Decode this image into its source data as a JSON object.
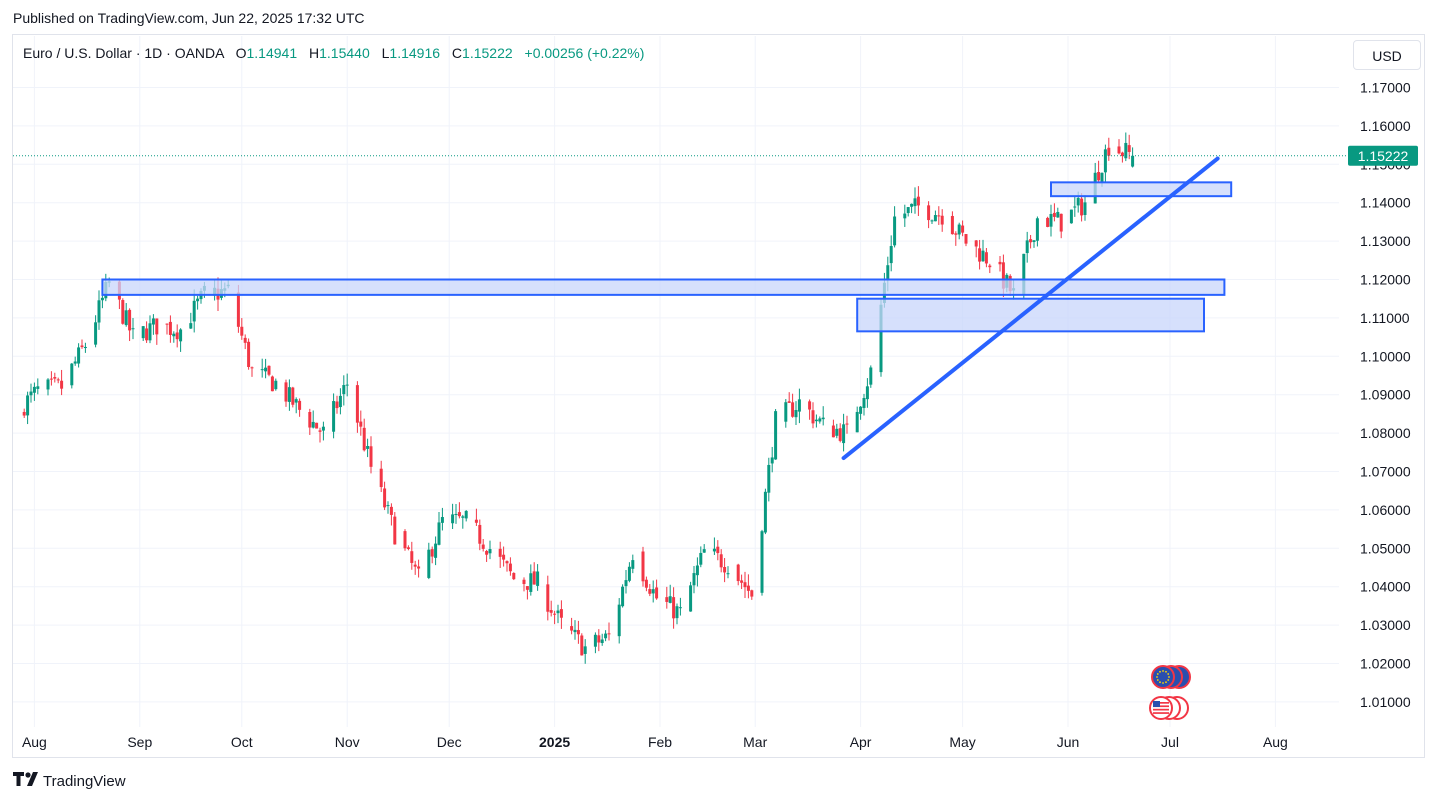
{
  "header": {
    "published": "Published on TradingView.com, Jun 22, 2025 17:32 UTC"
  },
  "legend": {
    "symbol": "Euro / U.S. Dollar · 1D · OANDA",
    "open_label": "O",
    "open": "1.14941",
    "high_label": "H",
    "high": "1.15440",
    "low_label": "L",
    "low": "1.14916",
    "close_label": "C",
    "close": "1.15222",
    "change": "+0.00256 (+0.22%)"
  },
  "currency": "USD",
  "footer": {
    "brand": "TradingView"
  },
  "colors": {
    "up": "#089981",
    "down": "#f23645",
    "drawing": "#2962ff",
    "zone_fill": "#c8d5fb",
    "price_tag": "#089981"
  },
  "icons": [
    "tradingview-logo-icon",
    "eu-flag-icon",
    "us-flag-icon"
  ],
  "chart_data": {
    "type": "candlestick",
    "symbol": "EURUSD",
    "timeframe": "1D",
    "y_ticks": [
      "1.17000",
      "1.16000",
      "1.15000",
      "1.14000",
      "1.13000",
      "1.12000",
      "1.11000",
      "1.10000",
      "1.09000",
      "1.08000",
      "1.07000",
      "1.06000",
      "1.05000",
      "1.04000",
      "1.03000",
      "1.02000",
      "1.01000"
    ],
    "y_tick_values": [
      1.17,
      1.16,
      1.15,
      1.14,
      1.13,
      1.12,
      1.11,
      1.1,
      1.09,
      1.08,
      1.07,
      1.06,
      1.05,
      1.04,
      1.03,
      1.02,
      1.01
    ],
    "x_ticks": [
      {
        "label": "Aug",
        "date": "2024-08-01"
      },
      {
        "label": "Sep",
        "date": "2024-09-01"
      },
      {
        "label": "Oct",
        "date": "2024-10-01"
      },
      {
        "label": "Nov",
        "date": "2024-11-01"
      },
      {
        "label": "Dec",
        "date": "2024-12-01"
      },
      {
        "label": "2025",
        "date": "2025-01-01",
        "bold": true
      },
      {
        "label": "Feb",
        "date": "2025-02-01"
      },
      {
        "label": "Mar",
        "date": "2025-03-01"
      },
      {
        "label": "Apr",
        "date": "2025-04-01"
      },
      {
        "label": "May",
        "date": "2025-05-01"
      },
      {
        "label": "Jun",
        "date": "2025-06-01"
      },
      {
        "label": "Jul",
        "date": "2025-07-01"
      },
      {
        "label": "Aug",
        "date": "2025-08-01"
      }
    ],
    "last_price": "1.15222",
    "last_price_value": 1.15222,
    "key_points": [
      {
        "date": "2024-07-26",
        "close": 1.085
      },
      {
        "date": "2024-08-02",
        "close": 1.091
      },
      {
        "date": "2024-08-09",
        "close": 1.092
      },
      {
        "date": "2024-08-16",
        "close": 1.103
      },
      {
        "date": "2024-08-23",
        "close": 1.119
      },
      {
        "date": "2024-08-30",
        "close": 1.105
      },
      {
        "date": "2024-09-06",
        "close": 1.108
      },
      {
        "date": "2024-09-13",
        "close": 1.107
      },
      {
        "date": "2024-09-20",
        "close": 1.116
      },
      {
        "date": "2024-09-27",
        "close": 1.117
      },
      {
        "date": "2024-10-04",
        "close": 1.096
      },
      {
        "date": "2024-10-11",
        "close": 1.093
      },
      {
        "date": "2024-10-18",
        "close": 1.086
      },
      {
        "date": "2024-10-25",
        "close": 1.08
      },
      {
        "date": "2024-11-01",
        "close": 1.093
      },
      {
        "date": "2024-11-08",
        "close": 1.071
      },
      {
        "date": "2024-11-15",
        "close": 1.054
      },
      {
        "date": "2024-11-22",
        "close": 1.042
      },
      {
        "date": "2024-11-29",
        "close": 1.057
      },
      {
        "date": "2024-12-06",
        "close": 1.057
      },
      {
        "date": "2024-12-13",
        "close": 1.05
      },
      {
        "date": "2024-12-20",
        "close": 1.042
      },
      {
        "date": "2024-12-27",
        "close": 1.041
      },
      {
        "date": "2025-01-03",
        "close": 1.03
      },
      {
        "date": "2025-01-10",
        "close": 1.024
      },
      {
        "date": "2025-01-17",
        "close": 1.027
      },
      {
        "date": "2025-01-24",
        "close": 1.049
      },
      {
        "date": "2025-01-31",
        "close": 1.037
      },
      {
        "date": "2025-02-07",
        "close": 1.033
      },
      {
        "date": "2025-02-14",
        "close": 1.049
      },
      {
        "date": "2025-02-21",
        "close": 1.046
      },
      {
        "date": "2025-02-28",
        "close": 1.038
      },
      {
        "date": "2025-03-07",
        "close": 1.083
      },
      {
        "date": "2025-03-14",
        "close": 1.088
      },
      {
        "date": "2025-03-21",
        "close": 1.082
      },
      {
        "date": "2025-03-28",
        "close": 1.08
      },
      {
        "date": "2025-04-04",
        "close": 1.096
      },
      {
        "date": "2025-04-11",
        "close": 1.136
      },
      {
        "date": "2025-04-18",
        "close": 1.139
      },
      {
        "date": "2025-04-25",
        "close": 1.137
      },
      {
        "date": "2025-05-02",
        "close": 1.13
      },
      {
        "date": "2025-05-09",
        "close": 1.125
      },
      {
        "date": "2025-05-16",
        "close": 1.116
      },
      {
        "date": "2025-05-23",
        "close": 1.136
      },
      {
        "date": "2025-05-30",
        "close": 1.135
      },
      {
        "date": "2025-06-06",
        "close": 1.14
      },
      {
        "date": "2025-06-13",
        "close": 1.155
      },
      {
        "date": "2025-06-20",
        "close": 1.1522
      }
    ],
    "zones": [
      {
        "from": "2024-08-21",
        "to": "2025-07-17",
        "top": 1.12,
        "bottom": 1.116
      },
      {
        "from": "2025-03-31",
        "to": "2025-07-11",
        "top": 1.115,
        "bottom": 1.1065
      },
      {
        "from": "2025-05-27",
        "to": "2025-07-19",
        "top": 1.1453,
        "bottom": 1.1417
      }
    ],
    "trendline": {
      "from": {
        "date": "2025-03-27",
        "price": 1.0735
      },
      "to": {
        "date": "2025-07-15",
        "price": 1.1515
      }
    },
    "grid": true
  }
}
